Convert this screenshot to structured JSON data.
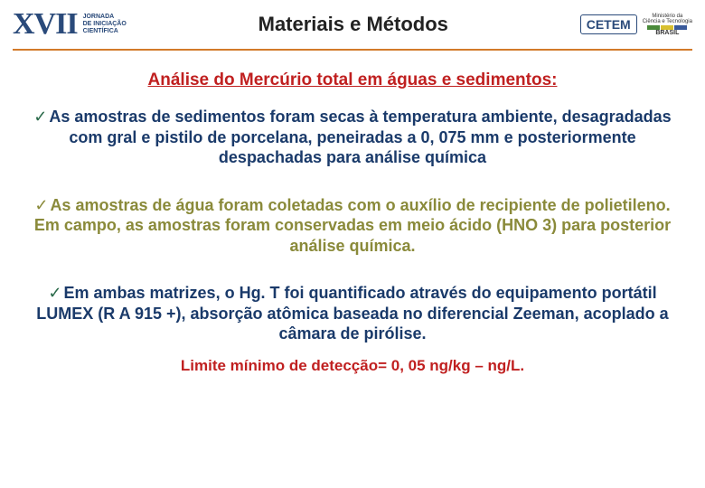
{
  "header": {
    "logo_roman": "XVII",
    "logo_sub1": "JORNADA",
    "logo_sub2": "DE INICIAÇÃO",
    "logo_sub3": "CIENTÍFICA",
    "title": "Materiais e Métodos",
    "cetem": "CETEM",
    "mct1": "Ministério da",
    "mct2": "Ciência e Tecnologia",
    "brasil": "BRASIL"
  },
  "colors": {
    "divider": "#d27a2a",
    "subtitle": "#c02020",
    "navy": "#1a3a6a",
    "olive": "#8a8a3a",
    "check_navy": "#2a6a4a",
    "mct_green": "#4a8a3a",
    "mct_yellow": "#d8c030",
    "mct_blue": "#3a5a9a"
  },
  "content": {
    "subtitle": "Análise do Mercúrio total em águas e sedimentos:",
    "p1": "As amostras de sedimentos foram secas à temperatura ambiente, desagradadas com gral e pistilo de porcelana, peneiradas a 0, 075 mm e posteriormente despachadas para análise química",
    "p2": "As amostras de água foram coletadas com o auxílio de recipiente de polietileno. Em campo, as amostras foram conservadas em meio ácido (HNO 3) para posterior análise química.",
    "p3": "Em ambas matrizes, o Hg. T foi quantificado através do equipamento portátil LUMEX (R A 915 +), absorção atômica baseada no diferencial Zeeman, acoplado a câmara de pirólise.",
    "footer": "Limite mínimo de detecção= 0, 05 ng/kg – ng/L."
  }
}
